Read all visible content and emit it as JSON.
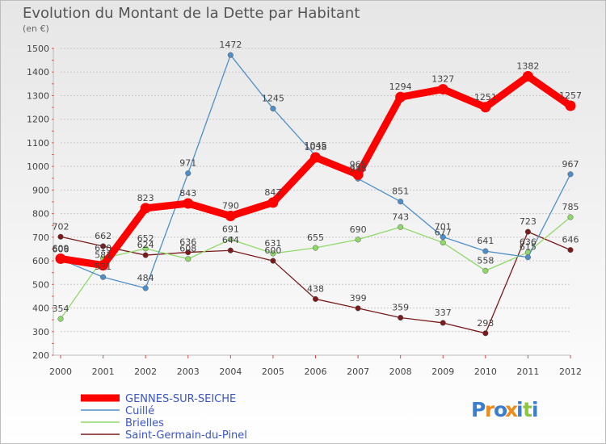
{
  "chart_data": {
    "type": "line",
    "title": "Evolution du Montant de la Dette par Habitant",
    "subtitle": "(en €)",
    "x": [
      "2000",
      "2001",
      "2002",
      "2003",
      "2004",
      "2005",
      "2006",
      "2007",
      "2008",
      "2009",
      "2010",
      "2011",
      "2012"
    ],
    "ylim": [
      200,
      1500
    ],
    "yticks": [
      200,
      300,
      400,
      500,
      600,
      700,
      800,
      900,
      1000,
      1100,
      1200,
      1300,
      1400,
      1500
    ],
    "grid": "horizontal",
    "legend_position": "bottom-left",
    "series": [
      {
        "name": "GENNES-SUR-SEICHE",
        "color": "#ff0000",
        "values": [
          609,
          581,
          823,
          843,
          790,
          847,
          1038,
          965,
          1294,
          1327,
          1251,
          1382,
          1257
        ]
      },
      {
        "name": "Cuillé",
        "color": "#4f8fc9",
        "values": [
          606,
          531,
          484,
          971,
          1472,
          1245,
          1045,
          948,
          851,
          701,
          641,
          615,
          967
        ]
      },
      {
        "name": "Brielles",
        "color": "#8fd96a",
        "values": [
          354,
          610,
          652,
          608,
          691,
          631,
          655,
          690,
          743,
          677,
          558,
          636,
          785
        ]
      },
      {
        "name": "Saint-Germain-du-Pinel",
        "color": "#7b1a1a",
        "values": [
          702,
          662,
          624,
          636,
          644,
          600,
          438,
          399,
          359,
          337,
          293,
          723,
          646
        ]
      }
    ],
    "data_labels": [
      [
        "609",
        "581",
        "823",
        "843",
        "790",
        "847",
        "1038",
        "965",
        "1294",
        "1327",
        "1251",
        "1382",
        "1257"
      ],
      [
        "606",
        "531",
        "484",
        "971",
        "1472",
        "1245",
        "1045",
        "948",
        "851",
        "701",
        "641",
        "615",
        "967"
      ],
      [
        "354",
        "610",
        "652",
        "608",
        "691",
        "631",
        "655",
        "690",
        "743",
        "677",
        "558",
        "636",
        "785"
      ],
      [
        "702",
        "662",
        "624",
        "636",
        "644",
        "600",
        "438",
        "399",
        "359",
        "337",
        "293",
        "723",
        "646"
      ]
    ]
  },
  "brand": {
    "text": "Proxiti",
    "letters": [
      "P",
      "r",
      "o",
      "x",
      "i",
      "t",
      "i"
    ],
    "colors": [
      "#3a7ed0",
      "#f08a1c",
      "#3a7ed0",
      "#f08a1c",
      "#3a7ed0",
      "#8cc63f",
      "#3a7ed0"
    ]
  }
}
